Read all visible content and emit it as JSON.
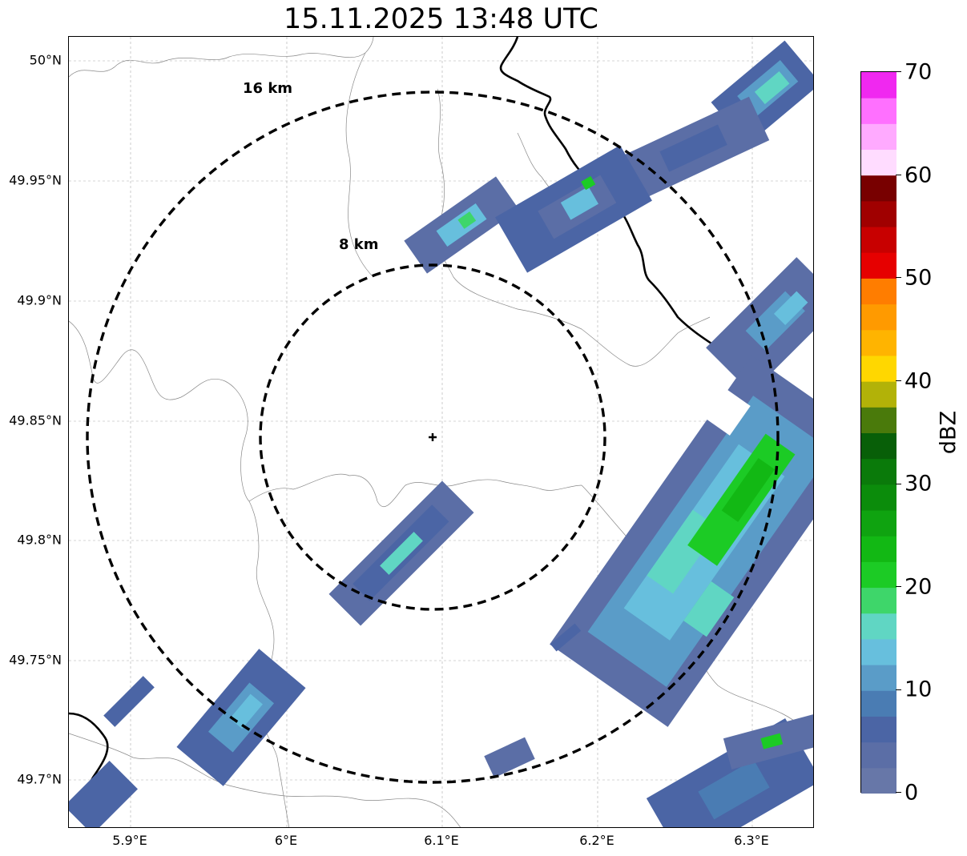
{
  "title": "15.11.2025 13:48 UTC",
  "map": {
    "lat_labels": [
      "50°N",
      "49.95°N",
      "49.9°N",
      "49.85°N",
      "49.8°N",
      "49.75°N",
      "49.7°N"
    ],
    "lon_labels": [
      "5.9°E",
      "6°E",
      "6.1°E",
      "6.2°E",
      "6.3°E"
    ],
    "extent": {
      "lon_min": 5.86,
      "lon_max": 6.34,
      "lat_min": 49.68,
      "lat_max": 50.01
    },
    "radar_site": {
      "lon": 6.095,
      "lat": 49.843
    },
    "range_rings": [
      {
        "label": "8 km",
        "radius_km": 8
      },
      {
        "label": "16 km",
        "radius_km": 16
      }
    ],
    "borders": {
      "national": "black",
      "admin": "grey"
    }
  },
  "colorbar": {
    "label": "dBZ",
    "ticks": [
      "0",
      "10",
      "20",
      "30",
      "40",
      "50",
      "60",
      "70"
    ],
    "min": 0,
    "max": 70,
    "colors": [
      "#6777a8",
      "#5b6ea6",
      "#4b65a5",
      "#4a7cb3",
      "#5a9cc8",
      "#67bfdd",
      "#60d6c3",
      "#3ed66a",
      "#1ccb25",
      "#12b814",
      "#0fa310",
      "#0b8c0b",
      "#0a7a0a",
      "#085f08",
      "#4a7a0b",
      "#b2b208",
      "#ffd700",
      "#ffb400",
      "#ff9a00",
      "#ff7d00",
      "#e60000",
      "#c80000",
      "#a00000",
      "#780000",
      "#ffdcff",
      "#ffaaff",
      "#ff70ff",
      "#f028f0"
    ]
  }
}
